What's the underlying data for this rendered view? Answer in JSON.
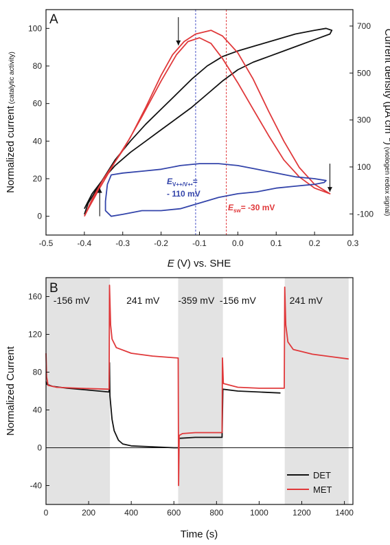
{
  "chart_data": [
    {
      "panel_label": "A",
      "type": "line",
      "xlabel_italic": "E",
      "xlabel_rest": " (V) vs. SHE",
      "ylabel_main": "Normalized current",
      "ylabel_sub": " (catalytic activity)",
      "y2label_main": "Current density (µA cm",
      "y2label_sup": "−2",
      "y2label_end": ")",
      "y2label_sub": " (viologen redox signal)",
      "xlim": [
        -0.5,
        0.3
      ],
      "ylim": [
        -10,
        110
      ],
      "y2lim": [
        -190,
        770
      ],
      "xticks": [
        "-0.5",
        "-0.4",
        "-0.3",
        "-0.2",
        "-0.1",
        "0.0",
        "0.1",
        "0.2",
        "0.3"
      ],
      "yticks": [
        "0",
        "20",
        "40",
        "60",
        "80",
        "100"
      ],
      "y2ticks": [
        "-100",
        "100",
        "300",
        "500",
        "700"
      ],
      "vlines": [
        {
          "x": -0.11,
          "color": "#4a55c8"
        },
        {
          "x": -0.03,
          "color": "#e0383a"
        }
      ],
      "series": [
        {
          "color": "#111111",
          "axis": "left",
          "points": [
            [
              -0.4,
              4
            ],
            [
              -0.38,
              12
            ],
            [
              -0.35,
              20
            ],
            [
              -0.32,
              27
            ],
            [
              -0.28,
              34
            ],
            [
              -0.24,
              40
            ],
            [
              -0.2,
              46
            ],
            [
              -0.16,
              52
            ],
            [
              -0.12,
              58
            ],
            [
              -0.08,
              65
            ],
            [
              -0.04,
              72
            ],
            [
              0.0,
              78
            ],
            [
              0.04,
              82
            ],
            [
              0.08,
              85
            ],
            [
              0.12,
              88
            ],
            [
              0.16,
              91
            ],
            [
              0.2,
              94
            ],
            [
              0.24,
              97
            ],
            [
              0.245,
              99
            ],
            [
              0.23,
              100
            ],
            [
              0.2,
              99
            ],
            [
              0.15,
              97
            ],
            [
              0.1,
              94
            ],
            [
              0.05,
              91
            ],
            [
              0.0,
              88
            ],
            [
              -0.04,
              85
            ],
            [
              -0.08,
              80
            ],
            [
              -0.12,
              73
            ],
            [
              -0.16,
              65
            ],
            [
              -0.2,
              57
            ],
            [
              -0.24,
              49
            ],
            [
              -0.28,
              40
            ],
            [
              -0.32,
              30
            ],
            [
              -0.36,
              17
            ],
            [
              -0.39,
              7
            ],
            [
              -0.4,
              1
            ]
          ]
        },
        {
          "color": "#e0383a",
          "axis": "left",
          "points": [
            [
              -0.4,
              0
            ],
            [
              -0.38,
              9
            ],
            [
              -0.35,
              20
            ],
            [
              -0.3,
              35
            ],
            [
              -0.25,
              53
            ],
            [
              -0.2,
              72
            ],
            [
              -0.16,
              86
            ],
            [
              -0.13,
              93
            ],
            [
              -0.1,
              95
            ],
            [
              -0.07,
              92
            ],
            [
              -0.04,
              84
            ],
            [
              0.0,
              71
            ],
            [
              0.04,
              57
            ],
            [
              0.08,
              43
            ],
            [
              0.12,
              30
            ],
            [
              0.16,
              21
            ],
            [
              0.2,
              15
            ],
            [
              0.24,
              12
            ],
            [
              0.24,
              12
            ],
            [
              0.2,
              17
            ],
            [
              0.16,
              26
            ],
            [
              0.12,
              40
            ],
            [
              0.08,
              56
            ],
            [
              0.04,
              73
            ],
            [
              0.0,
              87
            ],
            [
              -0.04,
              96
            ],
            [
              -0.07,
              99
            ],
            [
              -0.11,
              97
            ],
            [
              -0.14,
              93
            ],
            [
              -0.17,
              86
            ],
            [
              -0.2,
              75
            ],
            [
              -0.24,
              58
            ],
            [
              -0.28,
              42
            ],
            [
              -0.32,
              29
            ],
            [
              -0.36,
              15
            ],
            [
              -0.39,
              4
            ],
            [
              -0.4,
              0
            ]
          ]
        },
        {
          "color": "#3344aa",
          "axis": "left",
          "points": [
            [
              -0.345,
              8
            ],
            [
              -0.34,
              17
            ],
            [
              -0.33,
              22
            ],
            [
              -0.3,
              23
            ],
            [
              -0.25,
              24
            ],
            [
              -0.2,
              25
            ],
            [
              -0.15,
              27
            ],
            [
              -0.1,
              28
            ],
            [
              -0.05,
              28
            ],
            [
              0.0,
              27
            ],
            [
              0.05,
              25
            ],
            [
              0.1,
              23
            ],
            [
              0.15,
              21
            ],
            [
              0.2,
              20
            ],
            [
              0.23,
              19
            ],
            [
              0.225,
              18
            ],
            [
              0.2,
              17
            ],
            [
              0.15,
              16
            ],
            [
              0.1,
              15
            ],
            [
              0.05,
              13
            ],
            [
              0.0,
              12
            ],
            [
              -0.05,
              10
            ],
            [
              -0.1,
              7
            ],
            [
              -0.15,
              4
            ],
            [
              -0.2,
              3
            ],
            [
              -0.25,
              3
            ],
            [
              -0.3,
              1
            ],
            [
              -0.33,
              0
            ],
            [
              -0.345,
              3
            ],
            [
              -0.345,
              8
            ]
          ]
        }
      ],
      "annotations": [
        {
          "base": "E",
          "sub": "V++/V+•",
          "line1_end": "=",
          "line2": "- 110 mV",
          "color": "#3344aa"
        },
        {
          "base": "E",
          "sub": "sw",
          "line1_end": "= -30 mV",
          "color": "#e0383a"
        }
      ],
      "arrows": [
        {
          "x": -0.155,
          "y_from": 106,
          "y_to": 91,
          "direction": "down"
        },
        {
          "x": 0.24,
          "y_from": 28,
          "y_to": 13,
          "direction": "down"
        },
        {
          "x": -0.36,
          "y_from": 0,
          "y_to": 15,
          "direction": "up"
        }
      ]
    },
    {
      "panel_label": "B",
      "type": "line",
      "xlabel": "Time (s)",
      "ylabel": "Normalized Current",
      "xlim": [
        0,
        1440
      ],
      "ylim": [
        -60,
        180
      ],
      "xticks": [
        "0",
        "200",
        "400",
        "600",
        "800",
        "1000",
        "1200",
        "1400"
      ],
      "yticks": [
        "-40",
        "0",
        "40",
        "80",
        "120",
        "160"
      ],
      "shaded_regions": [
        [
          0,
          300
        ],
        [
          620,
          830
        ],
        [
          1120,
          1420
        ]
      ],
      "segment_labels": [
        {
          "x": 120,
          "text": "-156 mV"
        },
        {
          "x": 455,
          "text": "241 mV"
        },
        {
          "x": 705,
          "text": "-359 mV"
        },
        {
          "x": 900,
          "text": "-156 mV"
        },
        {
          "x": 1220,
          "text": "241 mV"
        }
      ],
      "legend": {
        "position": "bottom-right",
        "entries": [
          {
            "name": "DET",
            "color": "#111111"
          },
          {
            "name": "MET",
            "color": "#e0383a"
          }
        ]
      },
      "series": [
        {
          "name": "DET",
          "color": "#111111",
          "points": [
            [
              0,
              70
            ],
            [
              5,
              67
            ],
            [
              30,
              65
            ],
            [
              100,
              63
            ],
            [
              200,
              61
            ],
            [
              296,
              59
            ],
            [
              298,
              90
            ],
            [
              300,
              55
            ],
            [
              310,
              30
            ],
            [
              320,
              18
            ],
            [
              340,
              8
            ],
            [
              360,
              4
            ],
            [
              400,
              2
            ],
            [
              500,
              1
            ],
            [
              600,
              0
            ],
            [
              622,
              0
            ],
            [
              624,
              10
            ],
            [
              700,
              11
            ],
            [
              826,
              11
            ],
            [
              830,
              62
            ],
            [
              900,
              60
            ],
            [
              1000,
              59
            ],
            [
              1100,
              58
            ]
          ]
        },
        {
          "name": "MET",
          "color": "#e0383a",
          "points": [
            [
              0,
              100
            ],
            [
              3,
              75
            ],
            [
              10,
              66
            ],
            [
              50,
              64
            ],
            [
              150,
              63
            ],
            [
              296,
              62
            ],
            [
              298,
              172
            ],
            [
              303,
              130
            ],
            [
              310,
              115
            ],
            [
              330,
              106
            ],
            [
              400,
              100
            ],
            [
              500,
              97
            ],
            [
              618,
              95
            ],
            [
              620,
              95
            ],
            [
              622,
              -40
            ],
            [
              625,
              13
            ],
            [
              640,
              15
            ],
            [
              700,
              16
            ],
            [
              826,
              16
            ],
            [
              828,
              95
            ],
            [
              832,
              68
            ],
            [
              900,
              64
            ],
            [
              1000,
              63
            ],
            [
              1118,
              63
            ],
            [
              1120,
              170
            ],
            [
              1125,
              130
            ],
            [
              1135,
              112
            ],
            [
              1160,
              104
            ],
            [
              1250,
              99
            ],
            [
              1350,
              96
            ],
            [
              1420,
              94
            ]
          ]
        }
      ]
    }
  ]
}
